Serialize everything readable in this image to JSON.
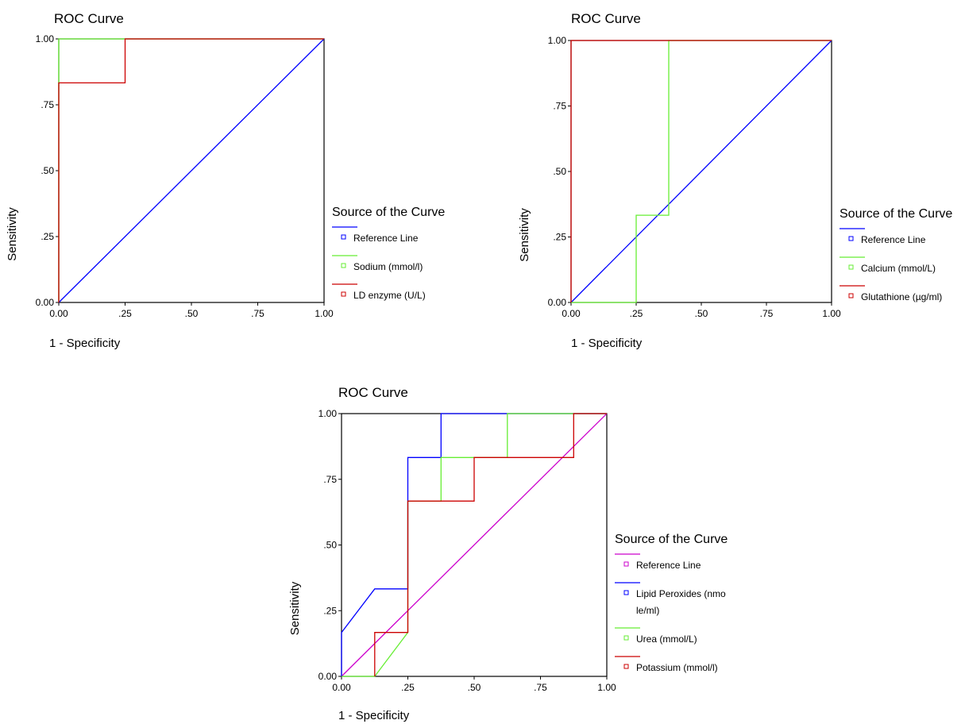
{
  "colors": {
    "blue": "#0000ff",
    "green": "#66ee33",
    "red": "#cc0000",
    "magenta": "#cc00cc",
    "frame": "#000000"
  },
  "chart_data": [
    {
      "type": "line",
      "title": "ROC Curve",
      "xlabel": "1 - Specificity",
      "ylabel": "Sensitivity",
      "xlim": [
        0,
        1
      ],
      "ylim": [
        0,
        1
      ],
      "xticks": [
        "0.00",
        ".25",
        ".50",
        ".75",
        "1.00"
      ],
      "yticks": [
        "0.00",
        ".25",
        ".50",
        ".75",
        "1.00"
      ],
      "grid": false,
      "legend_title": "Source of the Curve",
      "legend_position": "right",
      "series": [
        {
          "name": "Reference Line",
          "color": "#0000ff",
          "x": [
            0,
            1
          ],
          "y": [
            0,
            1
          ]
        },
        {
          "name": "Sodium (mmol/l)",
          "color": "#66ee33",
          "x": [
            0,
            0,
            1
          ],
          "y": [
            0,
            1,
            1
          ]
        },
        {
          "name": "LD enzyme (U/L)",
          "color": "#cc0000",
          "x": [
            0,
            0,
            0.25,
            0.25,
            1
          ],
          "y": [
            0,
            0.833,
            0.833,
            1,
            1
          ]
        }
      ]
    },
    {
      "type": "line",
      "title": "ROC Curve",
      "xlabel": "1 - Specificity",
      "ylabel": "Sensitivity",
      "xlim": [
        0,
        1
      ],
      "ylim": [
        0,
        1
      ],
      "xticks": [
        "0.00",
        ".25",
        ".50",
        ".75",
        "1.00"
      ],
      "yticks": [
        "0.00",
        ".25",
        ".50",
        ".75",
        "1.00"
      ],
      "grid": false,
      "legend_title": "Source of the Curve",
      "legend_position": "right",
      "series": [
        {
          "name": "Reference Line",
          "color": "#0000ff",
          "x": [
            0,
            1
          ],
          "y": [
            0,
            1
          ]
        },
        {
          "name": "Calcium (mmol/L)",
          "color": "#66ee33",
          "x": [
            0,
            0.25,
            0.25,
            0.375,
            0.375,
            1
          ],
          "y": [
            0,
            0,
            0.333,
            0.333,
            1,
            1
          ]
        },
        {
          "name": "Glutathione (µg/ml)",
          "color": "#cc0000",
          "x": [
            0,
            0,
            1
          ],
          "y": [
            0,
            1,
            1
          ]
        }
      ]
    },
    {
      "type": "line",
      "title": "ROC Curve",
      "xlabel": "1 - Specificity",
      "ylabel": "Sensitivity",
      "xlim": [
        0,
        1
      ],
      "ylim": [
        0,
        1
      ],
      "xticks": [
        "0.00",
        ".25",
        ".50",
        ".75",
        "1.00"
      ],
      "yticks": [
        "0.00",
        ".25",
        ".50",
        ".75",
        "1.00"
      ],
      "grid": false,
      "legend_title": "Source of the Curve",
      "legend_position": "right",
      "series": [
        {
          "name": "Reference Line",
          "color": "#cc00cc",
          "x": [
            0,
            1
          ],
          "y": [
            0,
            1
          ]
        },
        {
          "name": "Lipid Peroxides (nmole/ml)",
          "label_lines": [
            "Lipid Peroxides (nmo",
            "le/ml)"
          ],
          "color": "#0000ff",
          "x": [
            0,
            0,
            0.125,
            0.125,
            0.25,
            0.25,
            0.375,
            0.375,
            1
          ],
          "y": [
            0,
            0.167,
            0.333,
            0.333,
            0.333,
            0.833,
            0.833,
            1,
            1
          ]
        },
        {
          "name": "Urea (mmol/L)",
          "color": "#66ee33",
          "x": [
            0,
            0.125,
            0.25,
            0.25,
            0.375,
            0.375,
            0.625,
            0.625,
            1
          ],
          "y": [
            0,
            0,
            0.167,
            0.667,
            0.667,
            0.833,
            0.833,
            1,
            1
          ]
        },
        {
          "name": "Potassium (mmol/l)",
          "color": "#cc0000",
          "x": [
            0.125,
            0.125,
            0.25,
            0.25,
            0.5,
            0.5,
            0.875,
            0.875,
            1
          ],
          "y": [
            0,
            0.167,
            0.167,
            0.667,
            0.667,
            0.833,
            0.833,
            1,
            1
          ]
        }
      ]
    }
  ]
}
